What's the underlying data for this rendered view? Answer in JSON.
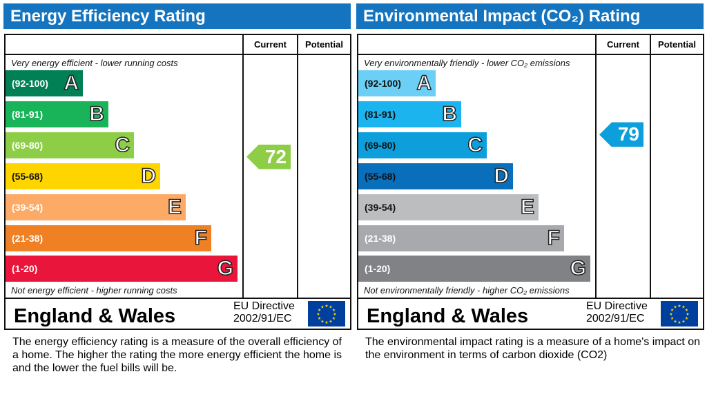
{
  "panels": [
    {
      "title": "Energy Efficiency Rating",
      "col_current": "Current",
      "col_potential": "Potential",
      "top_note": "Very energy efficient - lower running costs",
      "bottom_note": "Not energy efficient - higher running costs",
      "region": "England & Wales",
      "directive_1": "EU Directive",
      "directive_2": "2002/91/EC",
      "description": "The energy efficiency rating is a measure of the overall efficiency of a home.  The higher the rating the more energy efficient the home is and the lower the fuel bills will be.",
      "bands": [
        {
          "range": "(92-100)",
          "letter": "A",
          "color": "#008054"
        },
        {
          "range": "(81-91)",
          "letter": "B",
          "color": "#19b459"
        },
        {
          "range": "(69-80)",
          "letter": "C",
          "color": "#8dce46"
        },
        {
          "range": "(55-68)",
          "letter": "D",
          "color": "#ffd500"
        },
        {
          "range": "(39-54)",
          "letter": "E",
          "color": "#fcaa65"
        },
        {
          "range": "(21-38)",
          "letter": "F",
          "color": "#ef8023"
        },
        {
          "range": "(1-20)",
          "letter": "G",
          "color": "#e9153b"
        }
      ],
      "current": "72",
      "current_color": "#8dce46",
      "potential": ""
    },
    {
      "title": "Environmental Impact (CO₂) Rating",
      "col_current": "Current",
      "col_potential": "Potential",
      "top_note": "Very environmentally friendly - lower CO₂ emissions",
      "bottom_note": "Not environmentally friendly - higher CO₂ emissions",
      "region": "England & Wales",
      "directive_1": "EU Directive",
      "directive_2": "2002/91/EC",
      "description": "The environmental impact rating is a measure of a home's impact on the environment in terms of carbon dioxide (CO2)",
      "bands": [
        {
          "range": "(92-100)",
          "letter": "A",
          "color": "#6ccff6"
        },
        {
          "range": "(81-91)",
          "letter": "B",
          "color": "#1cb4ef"
        },
        {
          "range": "(69-80)",
          "letter": "C",
          "color": "#0d9fdb"
        },
        {
          "range": "(55-68)",
          "letter": "D",
          "color": "#0a6fbb"
        },
        {
          "range": "(39-54)",
          "letter": "E",
          "color": "#bbbdbf"
        },
        {
          "range": "(21-38)",
          "letter": "F",
          "color": "#a7a9ac"
        },
        {
          "range": "(1-20)",
          "letter": "G",
          "color": "#808285"
        }
      ],
      "current": "79",
      "current_color": "#0d9fdb",
      "potential": ""
    }
  ],
  "chart_data": [
    {
      "type": "bar",
      "title": "Energy Efficiency Rating",
      "categories": [
        "A",
        "B",
        "C",
        "D",
        "E",
        "F",
        "G"
      ],
      "ranges": [
        "92-100",
        "81-91",
        "69-80",
        "55-68",
        "39-54",
        "21-38",
        "1-20"
      ],
      "current": 72,
      "potential": null
    },
    {
      "type": "bar",
      "title": "Environmental Impact (CO2) Rating",
      "categories": [
        "A",
        "B",
        "C",
        "D",
        "E",
        "F",
        "G"
      ],
      "ranges": [
        "92-100",
        "81-91",
        "69-80",
        "55-68",
        "39-54",
        "21-38",
        "1-20"
      ],
      "current": 79,
      "potential": null
    }
  ]
}
